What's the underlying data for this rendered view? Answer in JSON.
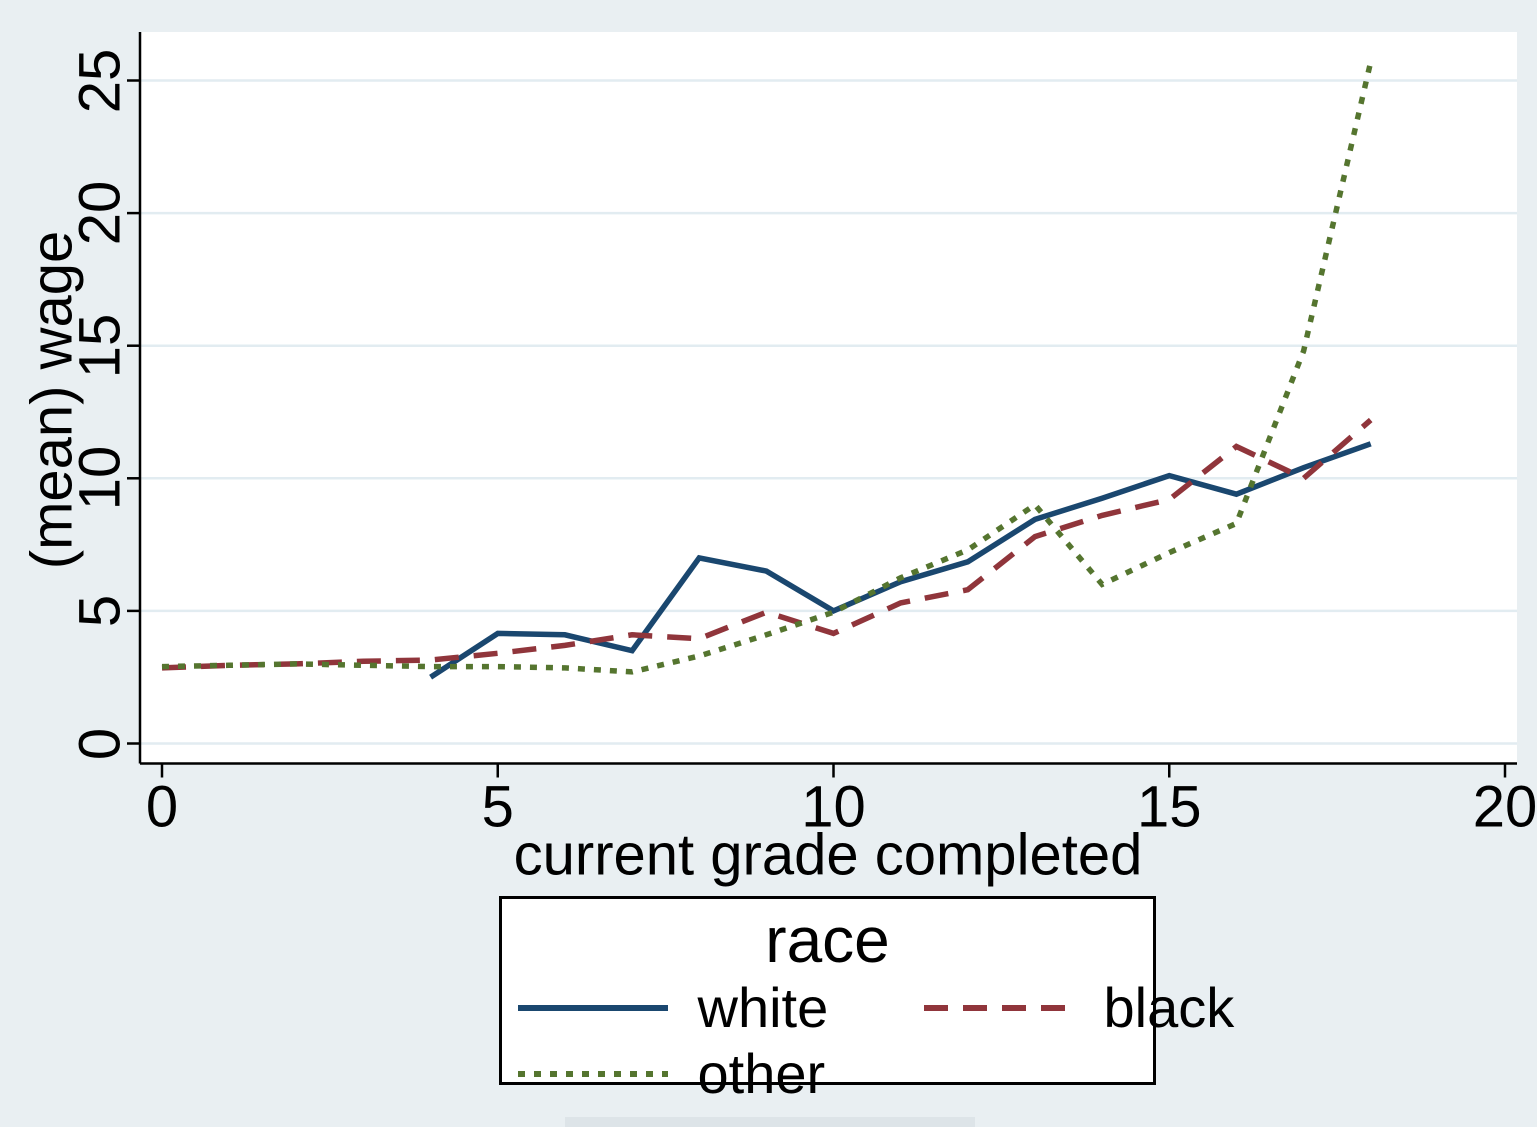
{
  "colors": {
    "background": "#e9eff2",
    "plot_background": "#ffffff",
    "gridline": "#e2ecf1",
    "axis": "#000000"
  },
  "chart_data": {
    "type": "line",
    "title": "",
    "xlabel": "current grade completed",
    "ylabel": "(mean) wage",
    "x_ticks": [
      0,
      5,
      10,
      15,
      20
    ],
    "y_ticks": [
      0,
      5,
      10,
      15,
      20,
      25
    ],
    "xlim": [
      0,
      20
    ],
    "ylim": [
      0,
      26.8
    ],
    "grid": true,
    "grid_axis": "y",
    "legend": {
      "title": "race",
      "position": "bottom-center",
      "entries": [
        "white",
        "black",
        "other"
      ]
    },
    "series": [
      {
        "name": "white",
        "style": "solid",
        "color": "#1a476f",
        "x": [
          4,
          5,
          6,
          7,
          8,
          9,
          10,
          11,
          12,
          13,
          14,
          15,
          16,
          17,
          18
        ],
        "values": [
          2.5,
          4.15,
          4.1,
          3.5,
          7.0,
          6.5,
          5.0,
          6.1,
          6.85,
          8.45,
          9.25,
          10.1,
          9.4,
          10.4,
          11.3
        ]
      },
      {
        "name": "black",
        "style": "dashed",
        "color": "#90353b",
        "x": [
          0,
          1,
          2,
          3,
          4,
          5,
          6,
          7,
          8,
          9,
          10,
          11,
          12,
          13,
          14,
          15,
          16,
          17,
          18
        ],
        "values": [
          2.85,
          2.95,
          3.0,
          3.1,
          3.15,
          3.4,
          3.7,
          4.1,
          3.95,
          4.95,
          4.15,
          5.3,
          5.8,
          7.8,
          8.6,
          9.2,
          11.2,
          10.0,
          12.2
        ]
      },
      {
        "name": "other",
        "style": "dotted",
        "color": "#55752f",
        "x": [
          0,
          1,
          2,
          3,
          4,
          5,
          6,
          7,
          8,
          9,
          10,
          11,
          12,
          13,
          14,
          15,
          16,
          17,
          18
        ],
        "values": [
          2.9,
          2.95,
          3.0,
          2.95,
          2.9,
          2.9,
          2.85,
          2.7,
          3.3,
          4.1,
          4.95,
          6.25,
          7.3,
          9.0,
          6.0,
          7.2,
          8.3,
          14.8,
          25.7
        ]
      }
    ]
  }
}
